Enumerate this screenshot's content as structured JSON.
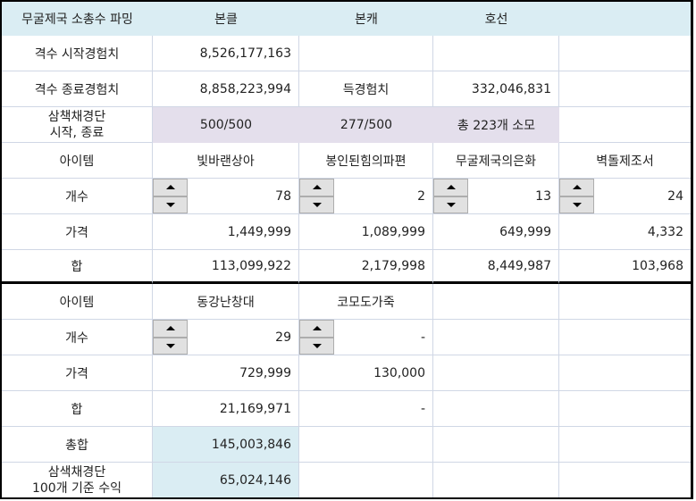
{
  "header": {
    "title": "무굴제국 소총수 파밍",
    "col1": "본클",
    "col2": "본캐",
    "col3": "호선",
    "col4": ""
  },
  "exp": {
    "start_label": "격수 시작경험치",
    "start_value": "8,526,177,163",
    "end_label": "격수 종료경험치",
    "end_value": "8,858,223,994",
    "gain_label": "득경험치",
    "gain_value": "332,046,831"
  },
  "stamina": {
    "label_line1": "삼책채경단",
    "label_line2": "시작, 종료",
    "start": "500/500",
    "end": "277/500",
    "consumed": "총 223개 소모"
  },
  "section1": {
    "item_label": "아이템",
    "count_label": "개수",
    "price_label": "가격",
    "sum_label": "합",
    "items": [
      {
        "name": "빛바랜상아",
        "count": "78",
        "price": "1,449,999",
        "sum": "113,099,922"
      },
      {
        "name": "봉인된힘의파편",
        "count": "2",
        "price": "1,089,999",
        "sum": "2,179,998"
      },
      {
        "name": "무굴제국의은화",
        "count": "13",
        "price": "649,999",
        "sum": "8,449,987"
      },
      {
        "name": "벽돌제조서",
        "count": "24",
        "price": "4,332",
        "sum": "103,968"
      }
    ]
  },
  "section2": {
    "item_label": "아이템",
    "count_label": "개수",
    "price_label": "가격",
    "sum_label": "합",
    "items": [
      {
        "name": "동강난창대",
        "count": "29",
        "price": "729,999",
        "sum": "21,169,971"
      },
      {
        "name": "코모도가죽",
        "count": "-",
        "price": "130,000",
        "sum": "-"
      }
    ]
  },
  "totals": {
    "total_label": "총합",
    "total_value": "145,003,846",
    "profit_label_line1": "삼색채경단",
    "profit_label_line2": "100개 기준 수익",
    "profit_value": "65,024,146"
  },
  "colors": {
    "header_bg": "#daedf3",
    "stamina_bg": "#e4dfec",
    "total_bg": "#daedf3",
    "gridline": "#d0d7e5"
  }
}
